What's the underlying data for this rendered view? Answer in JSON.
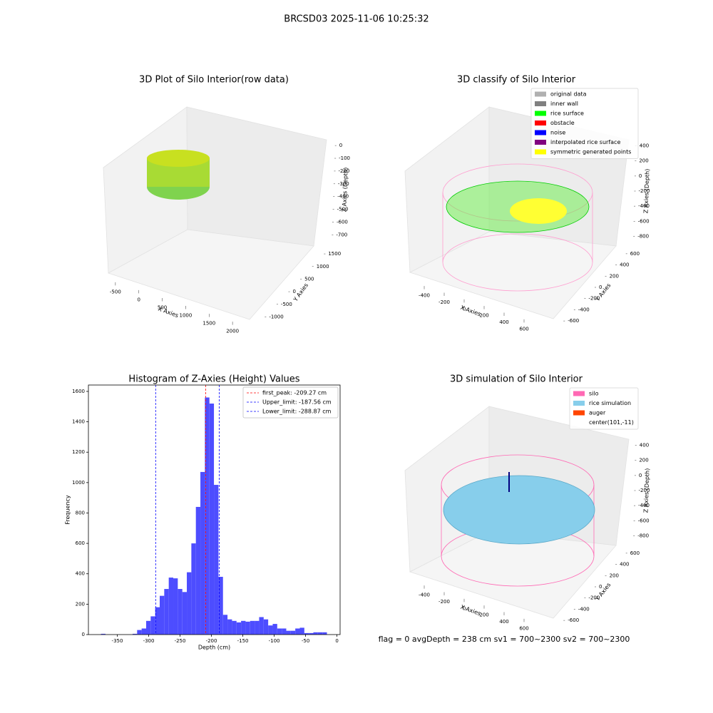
{
  "title": "BRCSD03 2025-11-06 10:25:32",
  "footer": "flag = 0     avgDepth = 238 cm  sv1 = 700~2300  sv2 = 700~2300",
  "chart_data": [
    {
      "type": "scatter3d",
      "title": "3D Plot of Silo Interior(row data)",
      "xlabel": "X Axies",
      "ylabel": "Y Axies",
      "zlabel": "Z Axies (Depth)",
      "xlim": [
        -650,
        2150
      ],
      "xticks": [
        -500,
        0,
        500,
        1000,
        1500,
        2000
      ],
      "ylim": [
        -1100,
        1700
      ],
      "yticks": [
        -1000,
        -500,
        0,
        500,
        1000,
        1500
      ],
      "zlim": [
        -760,
        40
      ],
      "zticks": [
        0,
        -100,
        -200,
        -300,
        -400,
        -500,
        -600,
        -700
      ]
    },
    {
      "type": "scatter3d",
      "title": "3D classify of Silo Interior",
      "xlabel": "X Axies",
      "ylabel": "Y Axies",
      "zlabel": "Z Axies (Depth)",
      "xlim": [
        -500,
        700
      ],
      "xticks": [
        -400,
        -200,
        0,
        200,
        400,
        600
      ],
      "ylim": [
        -700,
        700
      ],
      "yticks": [
        -600,
        -400,
        -200,
        0,
        200,
        400,
        600
      ],
      "zlim": [
        -900,
        500
      ],
      "zticks": [
        400,
        200,
        0,
        -200,
        -400,
        -600,
        -800
      ],
      "legend": [
        {
          "name": "original data",
          "color": "#b0b0b0"
        },
        {
          "name": "inner wall",
          "color": "#808080"
        },
        {
          "name": "rice surface",
          "color": "#00ff00"
        },
        {
          "name": "obstacle",
          "color": "#ff0000"
        },
        {
          "name": "noise",
          "color": "#0000ff"
        },
        {
          "name": "interpolated rice surface",
          "color": "#800080"
        },
        {
          "name": "symmetric generated points",
          "color": "#ffff00"
        }
      ]
    },
    {
      "type": "histogram",
      "title": "Histogram of Z-Axies (Height) Values",
      "xlabel": "Depth (cm)",
      "ylabel": "Frequency",
      "color": "#4d4dff",
      "bins": [
        -376,
        -368.8,
        -361.6,
        -354.4,
        -347.2,
        -340,
        -332.8,
        -325.6,
        -318.4,
        -311.2,
        -304,
        -296.8,
        -289.6,
        -282.4,
        -275.2,
        -268,
        -260.8,
        -253.6,
        -246.4,
        -239.2,
        -232,
        -224.8,
        -217.6,
        -210.4,
        -203.2,
        -196,
        -188.8,
        -181.6,
        -174.4,
        -167.2,
        -160,
        -152.8,
        -145.6,
        -138.4,
        -131.2,
        -124,
        -116.8,
        -109.6,
        -102.4,
        -95.2,
        -88,
        -80.8,
        -73.6,
        -66.4,
        -59.2,
        -52,
        -44.8,
        -37.6,
        -30.4,
        -23.2,
        -16
      ],
      "values": [
        5,
        0,
        0,
        0,
        0,
        0,
        0,
        5,
        30,
        40,
        90,
        120,
        180,
        255,
        300,
        375,
        370,
        300,
        280,
        410,
        600,
        840,
        1070,
        1560,
        1520,
        985,
        380,
        130,
        100,
        90,
        80,
        90,
        85,
        90,
        90,
        115,
        100,
        60,
        70,
        40,
        40,
        25,
        25,
        40,
        45,
        10,
        10,
        15,
        15,
        15
      ],
      "xlim": [
        -396,
        5
      ],
      "xticks": [
        -350,
        -300,
        -250,
        -200,
        -150,
        -100,
        -50,
        0
      ],
      "ylim": [
        0,
        1642
      ],
      "yticks": [
        0,
        200,
        400,
        600,
        800,
        1000,
        1200,
        1400,
        1600
      ],
      "vlines": [
        {
          "value": -209.27,
          "label": "first_peak: -209.27 cm",
          "color": "#ff0000"
        },
        {
          "value": -187.56,
          "label": "Upper_limit: -187.56 cm",
          "color": "#0000ff"
        },
        {
          "value": -288.87,
          "label": "Lower_limit: -288.87 cm",
          "color": "#0000ff"
        }
      ]
    },
    {
      "type": "surface3d",
      "title": "3D simulation of Silo Interior",
      "xlabel": "X Axies",
      "ylabel": "Y Axies",
      "zlabel": "Z Axies (Depth)",
      "xlim": [
        -500,
        700
      ],
      "xticks": [
        -400,
        -200,
        0,
        200,
        400,
        600
      ],
      "ylim": [
        -700,
        700
      ],
      "yticks": [
        -600,
        -400,
        -200,
        0,
        200,
        400,
        600
      ],
      "zlim": [
        -900,
        500
      ],
      "zticks": [
        400,
        200,
        0,
        -200,
        -400,
        -600,
        -800
      ],
      "legend": [
        {
          "name": "silo",
          "color": "#ff69b4"
        },
        {
          "name": "rice simulation",
          "color": "#87ceeb"
        },
        {
          "name": "auger",
          "color": "#ff4500"
        },
        {
          "name": "center(101,-11)"
        }
      ]
    }
  ]
}
